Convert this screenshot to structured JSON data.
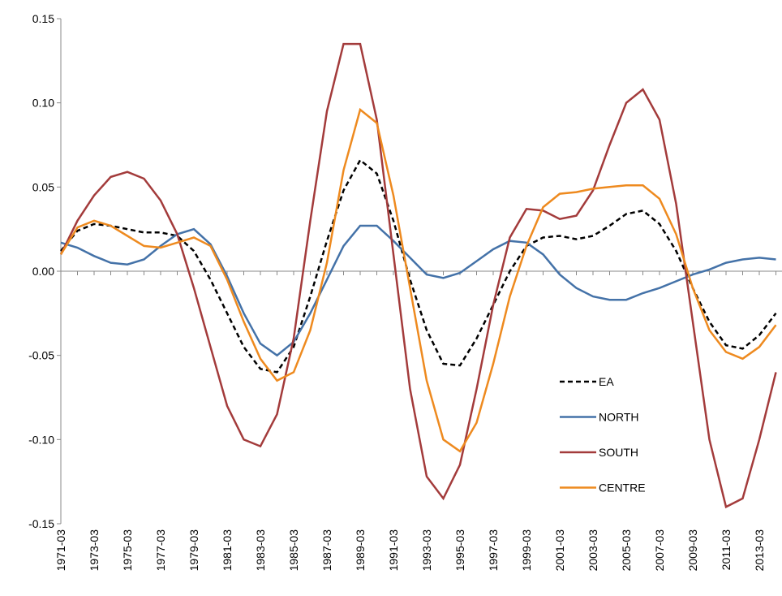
{
  "chart_data": {
    "type": "line",
    "categories": [
      "1971-03",
      null,
      "1973-03",
      null,
      "1975-03",
      null,
      "1977-03",
      null,
      "1979-03",
      null,
      "1981-03",
      null,
      "1983-03",
      null,
      "1985-03",
      null,
      "1987-03",
      null,
      "1989-03",
      null,
      "1991-03",
      null,
      "1993-03",
      null,
      "1995-03",
      null,
      "1997-03",
      null,
      "1999-03",
      null,
      "2001-03",
      null,
      "2003-03",
      null,
      "2005-03",
      null,
      "2007-03",
      null,
      "2009-03",
      null,
      "2011-03",
      null,
      "2013-03",
      null
    ],
    "series": [
      {
        "name": "EA",
        "color": "#000000",
        "line_style": "dashed",
        "values": [
          0.012,
          0.024,
          0.028,
          0.027,
          0.025,
          0.023,
          0.023,
          0.021,
          0.012,
          -0.005,
          -0.025,
          -0.045,
          -0.058,
          -0.06,
          -0.045,
          -0.015,
          0.018,
          0.048,
          0.066,
          0.058,
          0.03,
          -0.005,
          -0.035,
          -0.055,
          -0.056,
          -0.04,
          -0.02,
          0.0,
          0.015,
          0.02,
          0.021,
          0.019,
          0.021,
          0.027,
          0.034,
          0.036,
          0.028,
          0.012,
          -0.01,
          -0.03,
          -0.044,
          -0.046,
          -0.038,
          -0.025
        ]
      },
      {
        "name": "NORTH",
        "color": "#4472a8",
        "line_style": "solid",
        "values": [
          0.017,
          0.014,
          0.009,
          0.005,
          0.004,
          0.007,
          0.015,
          0.022,
          0.025,
          0.016,
          -0.003,
          -0.025,
          -0.043,
          -0.05,
          -0.042,
          -0.025,
          -0.005,
          0.015,
          0.027,
          0.027,
          0.018,
          0.008,
          -0.002,
          -0.004,
          -0.001,
          0.006,
          0.013,
          0.018,
          0.017,
          0.01,
          -0.002,
          -0.01,
          -0.015,
          -0.017,
          -0.017,
          -0.013,
          -0.01,
          -0.006,
          -0.002,
          0.001,
          0.005,
          0.007,
          0.008,
          0.007
        ]
      },
      {
        "name": "SOUTH",
        "color": "#a33b3b",
        "line_style": "solid",
        "values": [
          0.01,
          0.03,
          0.045,
          0.056,
          0.059,
          0.055,
          0.042,
          0.022,
          -0.01,
          -0.045,
          -0.08,
          -0.1,
          -0.104,
          -0.085,
          -0.04,
          0.03,
          0.095,
          0.135,
          0.135,
          0.09,
          0.01,
          -0.07,
          -0.122,
          -0.135,
          -0.115,
          -0.07,
          -0.02,
          0.02,
          0.037,
          0.036,
          0.031,
          0.033,
          0.048,
          0.075,
          0.1,
          0.108,
          0.09,
          0.04,
          -0.03,
          -0.1,
          -0.14,
          -0.135,
          -0.1,
          -0.06
        ]
      },
      {
        "name": "CENTRE",
        "color": "#ee8a1f",
        "line_style": "solid",
        "values": [
          0.01,
          0.026,
          0.03,
          0.027,
          0.021,
          0.015,
          0.014,
          0.017,
          0.02,
          0.015,
          -0.005,
          -0.03,
          -0.052,
          -0.065,
          -0.06,
          -0.035,
          0.005,
          0.06,
          0.096,
          0.088,
          0.045,
          -0.01,
          -0.065,
          -0.1,
          -0.107,
          -0.09,
          -0.055,
          -0.015,
          0.015,
          0.038,
          0.046,
          0.047,
          0.049,
          0.05,
          0.051,
          0.051,
          0.043,
          0.022,
          -0.01,
          -0.035,
          -0.048,
          -0.052,
          -0.045,
          -0.032
        ]
      }
    ],
    "ylim": [
      -0.15,
      0.15
    ],
    "yticks": [
      {
        "value": -0.15,
        "label": "-0.15"
      },
      {
        "value": -0.1,
        "label": "-0.10"
      },
      {
        "value": -0.05,
        "label": "-0.05"
      },
      {
        "value": 0,
        "label": "0.00"
      },
      {
        "value": 0.05,
        "label": "0.05"
      },
      {
        "value": 0.1,
        "label": "0.10"
      },
      {
        "value": 0.15,
        "label": "0.15"
      }
    ]
  }
}
